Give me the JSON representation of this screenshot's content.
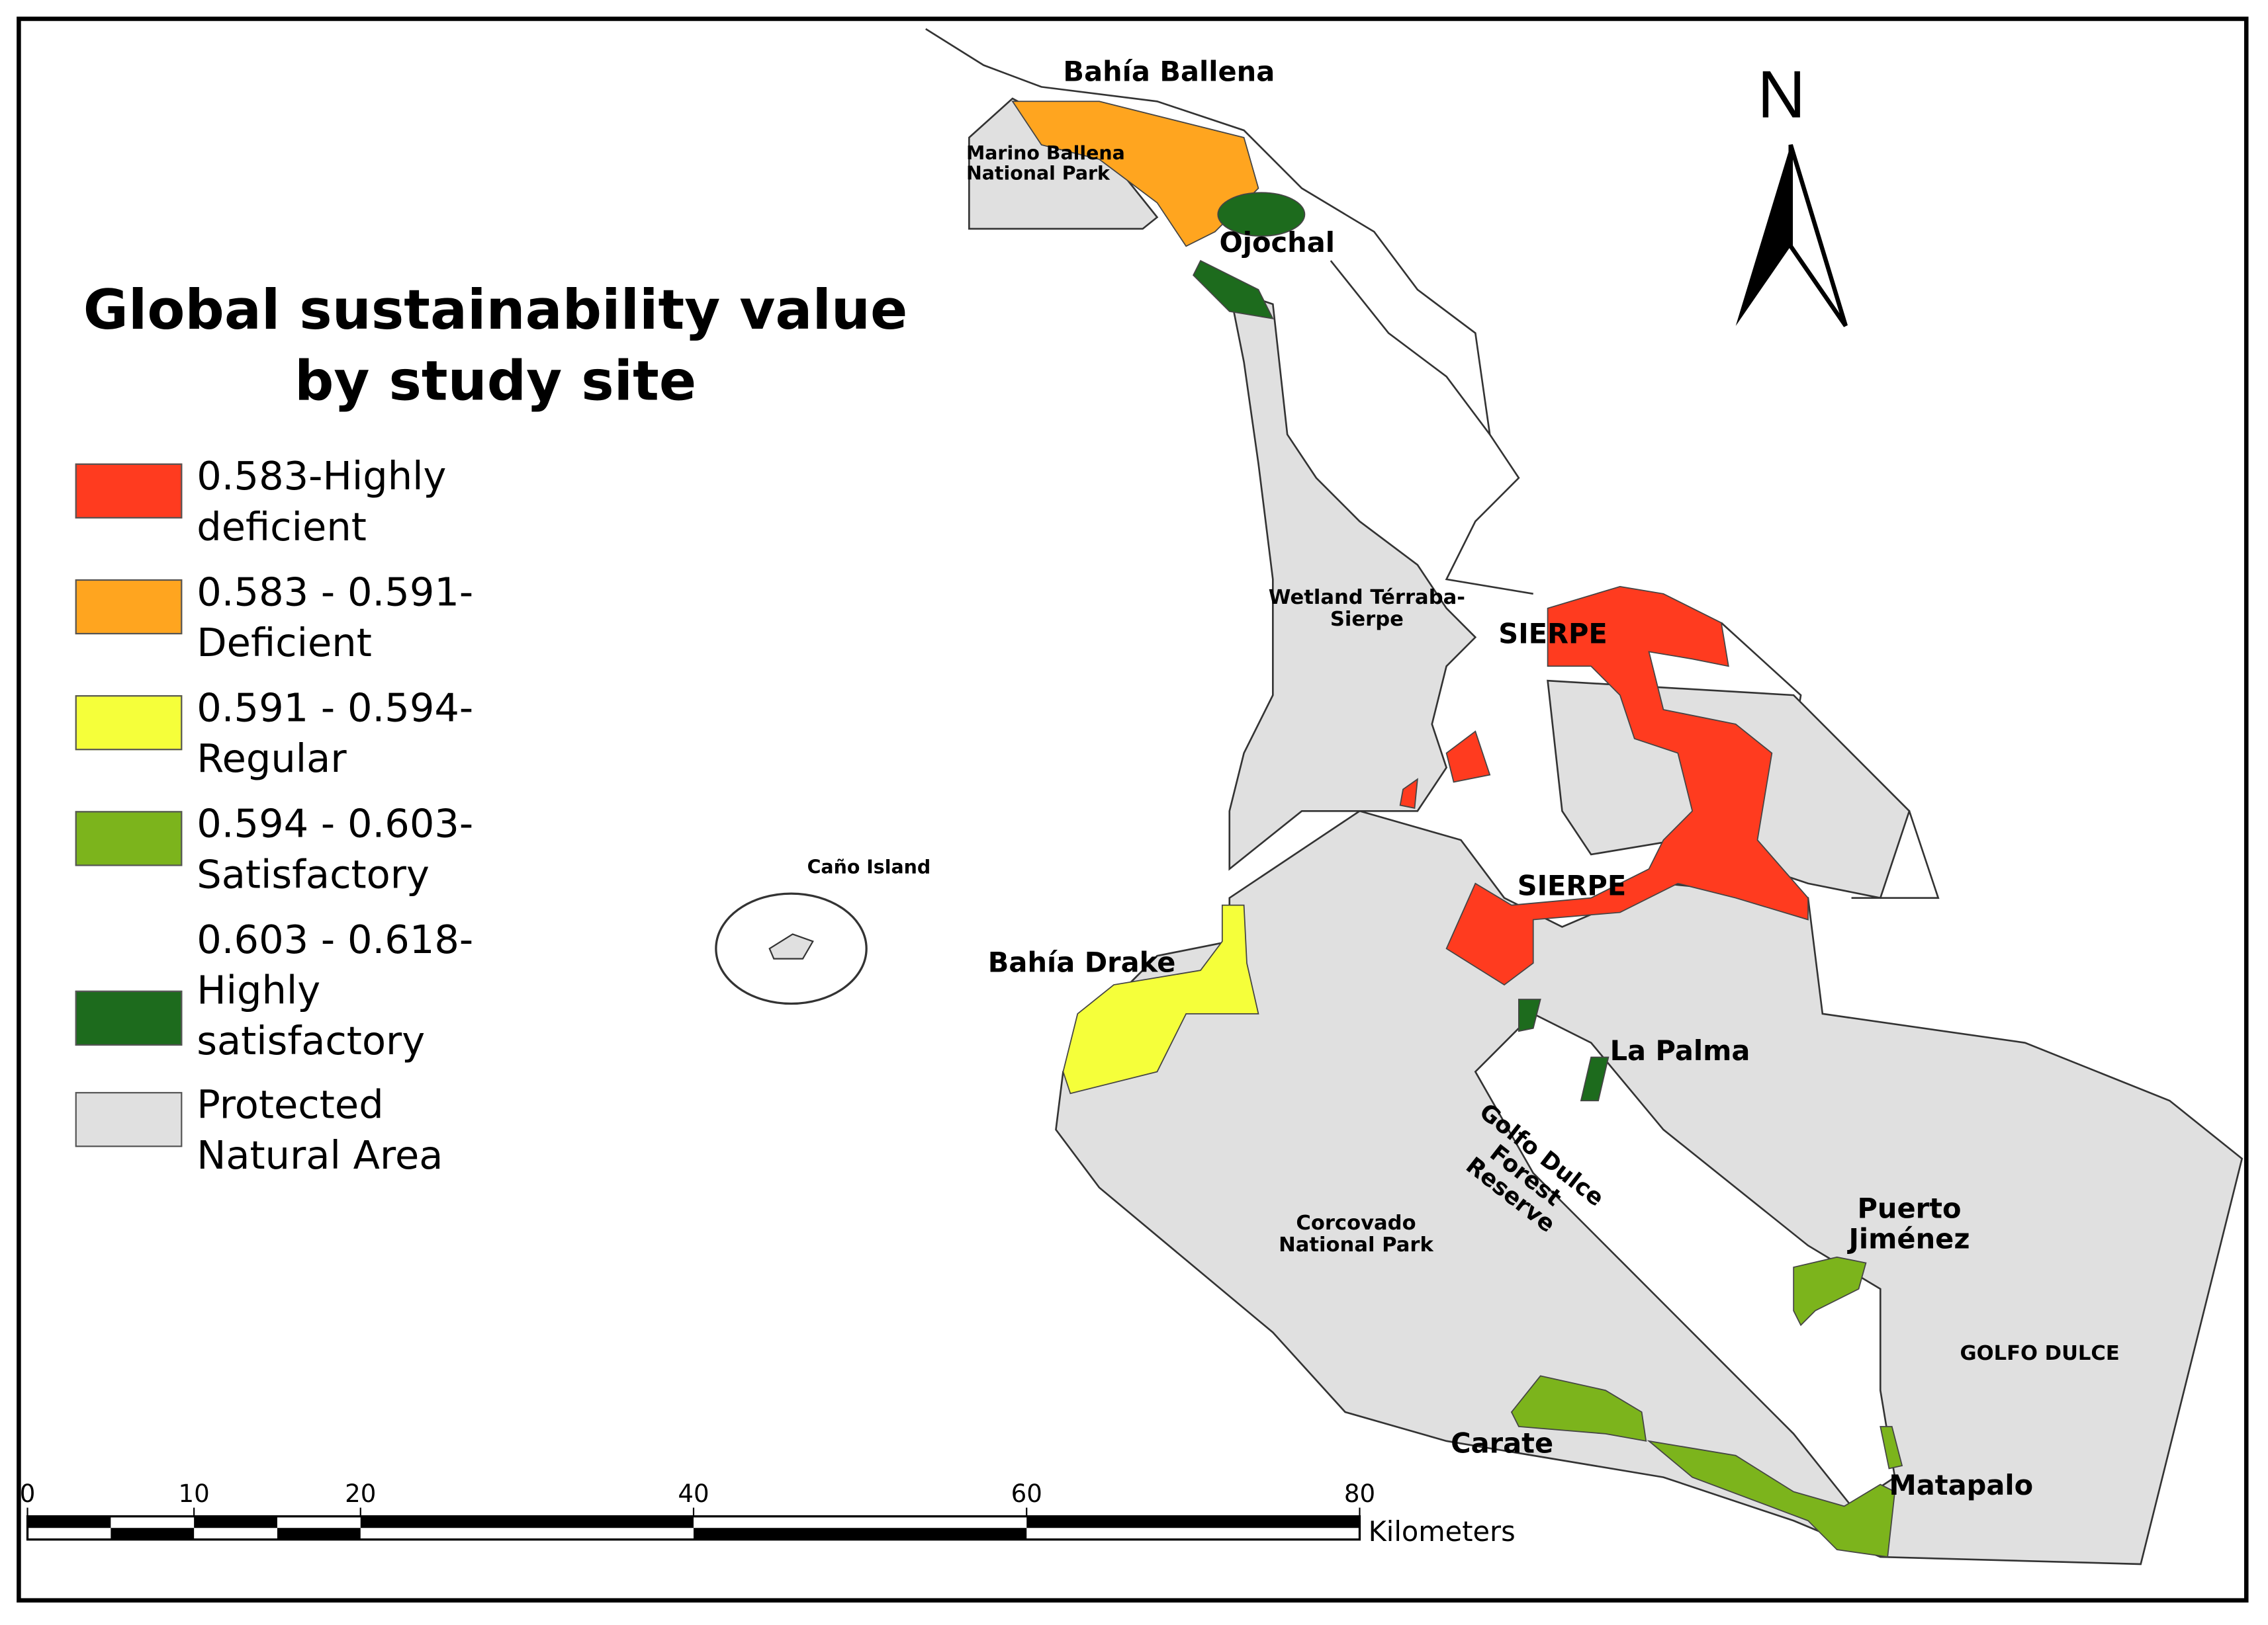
{
  "title": "Global sustainability value by study site",
  "legend": [
    {
      "label": "0.583-Highly deficient",
      "color": "#ff3b1f"
    },
    {
      "label": "0.583 - 0.591-Deficient",
      "color": "#ffa51f"
    },
    {
      "label": "0.591 - 0.594-Regular",
      "color": "#f5ff3a"
    },
    {
      "label": "0.594 - 0.603-Satisfactory",
      "color": "#7cb41c"
    },
    {
      "label": "0.603 - 0.618-Highly satisfactory",
      "color": "#1d6b1d"
    },
    {
      "label": "Protected Natural Area",
      "color": "#e0e0e0"
    }
  ],
  "places": [
    "Bahía Ballena",
    "Marino Ballena National Park",
    "Ojochal",
    "Wetland Térraba-Sierpe",
    "SIERPE",
    "SIERPE",
    "Caño Island",
    "Bahía Drake",
    "La Palma",
    "Golfo Dulce Forest Reserve",
    "Puerto Jiménez",
    "Corcovado National Park",
    "GOLFO DULCE",
    "Carate",
    "Matapalo"
  ],
  "north": "N",
  "scale_bar": {
    "ticks": [
      0,
      10,
      20,
      40,
      60,
      80
    ],
    "unit": "Kilometers"
  }
}
